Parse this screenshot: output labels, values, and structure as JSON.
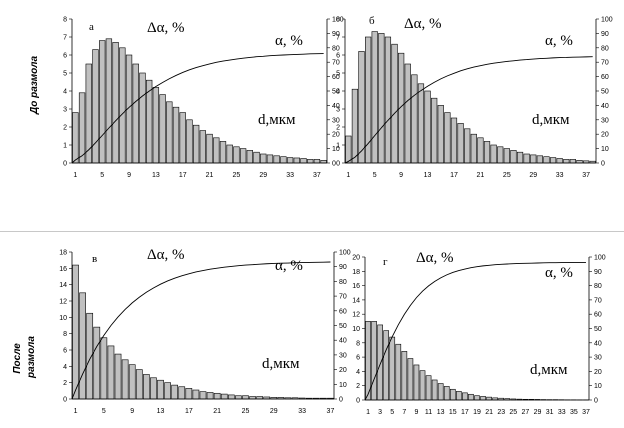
{
  "figure": {
    "row_labels": [
      "До размола",
      "После размола"
    ],
    "row_label_lines": [
      [
        "До размола"
      ],
      [
        "После",
        "размола"
      ]
    ]
  },
  "chart_data": [
    {
      "type": "bar",
      "panel_label": "а",
      "row": "До размола",
      "left_axis_label": "Δα, %",
      "right_axis_label": "α, %",
      "x_axis_label": "d,мкм",
      "categories": [
        1,
        2,
        3,
        4,
        5,
        6,
        7,
        8,
        9,
        10,
        11,
        12,
        13,
        14,
        15,
        16,
        17,
        18,
        19,
        20,
        21,
        22,
        23,
        24,
        25,
        26,
        27,
        28,
        29,
        30,
        31,
        32,
        33,
        34,
        35,
        36,
        37,
        38
      ],
      "x_ticks": [
        1,
        5,
        9,
        13,
        17,
        21,
        25,
        29,
        33,
        37
      ],
      "series": [
        {
          "axis": "left",
          "kind": "bars",
          "values": [
            2.8,
            3.9,
            5.5,
            6.3,
            6.8,
            6.9,
            6.7,
            6.4,
            6.0,
            5.5,
            5.0,
            4.6,
            4.2,
            3.8,
            3.4,
            3.1,
            2.8,
            2.4,
            2.1,
            1.8,
            1.6,
            1.4,
            1.2,
            1.0,
            0.9,
            0.8,
            0.7,
            0.6,
            0.5,
            0.45,
            0.4,
            0.35,
            0.3,
            0.28,
            0.25,
            0.2,
            0.2,
            0.15
          ]
        },
        {
          "axis": "right",
          "kind": "line",
          "values": [
            2.1,
            5.0,
            9.2,
            14.0,
            19.1,
            24.3,
            29.3,
            34.1,
            38.6,
            42.7,
            46.5,
            49.9,
            53.1,
            55.9,
            58.5,
            60.8,
            62.9,
            64.7,
            66.3,
            67.6,
            68.8,
            69.9,
            70.8,
            71.5,
            72.2,
            72.8,
            73.3,
            73.8,
            74.1,
            74.5,
            74.8,
            75.0,
            75.2,
            75.4,
            75.6,
            75.8,
            75.9,
            76.0
          ]
        }
      ],
      "ylim_left": [
        0,
        8
      ],
      "ylim_right": [
        0,
        100
      ],
      "yticks_left": [
        0,
        1,
        2,
        3,
        4,
        5,
        6,
        7,
        8
      ],
      "yticks_right": [
        0,
        10,
        20,
        30,
        40,
        50,
        60,
        70,
        80,
        90,
        100
      ]
    },
    {
      "type": "bar",
      "panel_label": "б",
      "row": "До размола",
      "left_axis_label": "Δα, %",
      "right_axis_label": "α, %",
      "x_axis_label": "d,мкм",
      "categories": [
        1,
        2,
        3,
        4,
        5,
        6,
        7,
        8,
        9,
        10,
        11,
        12,
        13,
        14,
        15,
        16,
        17,
        18,
        19,
        20,
        21,
        22,
        23,
        24,
        25,
        26,
        27,
        28,
        29,
        30,
        31,
        32,
        33,
        34,
        35,
        36,
        37,
        38
      ],
      "x_ticks": [
        1,
        5,
        9,
        13,
        17,
        21,
        25,
        29,
        33,
        37
      ],
      "series": [
        {
          "axis": "left",
          "kind": "bars",
          "values": [
            1.5,
            4.1,
            6.2,
            7.0,
            7.3,
            7.2,
            7.0,
            6.6,
            6.1,
            5.5,
            4.9,
            4.4,
            4.0,
            3.6,
            3.2,
            2.8,
            2.5,
            2.2,
            1.9,
            1.6,
            1.4,
            1.2,
            1.0,
            0.9,
            0.8,
            0.7,
            0.6,
            0.5,
            0.45,
            0.4,
            0.35,
            0.3,
            0.25,
            0.2,
            0.2,
            0.15,
            0.12,
            0.1
          ]
        },
        {
          "axis": "right",
          "kind": "line",
          "values": [
            1.1,
            4.0,
            8.4,
            13.5,
            19.0,
            24.4,
            29.6,
            34.5,
            39.1,
            43.3,
            47.0,
            50.3,
            53.3,
            56.0,
            58.4,
            60.5,
            62.3,
            64.0,
            65.4,
            66.6,
            67.6,
            68.5,
            69.3,
            69.9,
            70.5,
            71.0,
            71.5,
            71.8,
            72.2,
            72.5,
            72.7,
            73.0,
            73.2,
            73.3,
            73.5,
            73.6,
            73.7,
            73.8
          ]
        }
      ],
      "ylim_left": [
        0,
        8
      ],
      "ylim_right": [
        0,
        100
      ],
      "yticks_left": [
        0,
        1,
        2,
        3,
        4,
        5,
        6,
        7,
        8
      ],
      "yticks_right": [
        0,
        10,
        20,
        30,
        40,
        50,
        60,
        70,
        80,
        90,
        100
      ]
    },
    {
      "type": "bar",
      "panel_label": "в",
      "row": "После размола",
      "left_axis_label": "Δα, %",
      "right_axis_label": "α, %",
      "x_axis_label": "d,мкм",
      "categories": [
        1,
        2,
        3,
        4,
        5,
        6,
        7,
        8,
        9,
        10,
        11,
        12,
        13,
        14,
        15,
        16,
        17,
        18,
        19,
        20,
        21,
        22,
        23,
        24,
        25,
        26,
        27,
        28,
        29,
        30,
        31,
        32,
        33,
        34,
        35,
        36,
        37
      ],
      "x_ticks": [
        1,
        5,
        9,
        13,
        17,
        21,
        25,
        29,
        33,
        37
      ],
      "series": [
        {
          "axis": "left",
          "kind": "bars",
          "values": [
            16.4,
            13.0,
            10.5,
            8.8,
            7.5,
            6.5,
            5.5,
            4.8,
            4.2,
            3.6,
            3.0,
            2.6,
            2.3,
            2.0,
            1.7,
            1.5,
            1.3,
            1.1,
            0.9,
            0.8,
            0.7,
            0.6,
            0.5,
            0.4,
            0.4,
            0.3,
            0.3,
            0.25,
            0.2,
            0.2,
            0.15,
            0.15,
            0.12,
            0.1,
            0.1,
            0.1,
            0.1
          ]
        },
        {
          "axis": "right",
          "kind": "line",
          "values": [
            6.0,
            17.0,
            27.0,
            35.7,
            43.3,
            50.0,
            55.8,
            60.9,
            65.4,
            69.2,
            72.6,
            75.5,
            78.1,
            80.3,
            82.2,
            83.8,
            85.2,
            86.4,
            87.4,
            88.3,
            89.0,
            89.7,
            90.2,
            90.7,
            91.1,
            91.4,
            91.7,
            92.0,
            92.2,
            92.4,
            92.5,
            92.7,
            92.8,
            92.9,
            93.0,
            93.1,
            93.2
          ]
        }
      ],
      "ylim_left": [
        0,
        18
      ],
      "ylim_right": [
        0,
        100
      ],
      "yticks_left": [
        0,
        2,
        4,
        6,
        8,
        10,
        12,
        14,
        16,
        18
      ],
      "yticks_right": [
        0,
        10,
        20,
        30,
        40,
        50,
        60,
        70,
        80,
        90,
        100
      ]
    },
    {
      "type": "bar",
      "panel_label": "г",
      "row": "После размола",
      "left_axis_label": "Δα, %",
      "right_axis_label": "α, %",
      "x_axis_label": "d,мкм",
      "categories": [
        1,
        2,
        3,
        4,
        5,
        6,
        7,
        8,
        9,
        10,
        11,
        12,
        13,
        14,
        15,
        16,
        17,
        18,
        19,
        20,
        21,
        22,
        23,
        24,
        25,
        26,
        27,
        28,
        29,
        30,
        31,
        32,
        33,
        34,
        35,
        36,
        37
      ],
      "x_ticks": [
        1,
        3,
        5,
        7,
        9,
        11,
        13,
        15,
        17,
        19,
        21,
        23,
        25,
        27,
        29,
        31,
        33,
        35,
        37
      ],
      "series": [
        {
          "axis": "left",
          "kind": "bars",
          "values": [
            11.0,
            11.0,
            10.5,
            9.7,
            8.8,
            7.8,
            6.8,
            5.8,
            4.9,
            4.1,
            3.4,
            2.8,
            2.3,
            1.9,
            1.5,
            1.2,
            1.0,
            0.8,
            0.6,
            0.5,
            0.4,
            0.3,
            0.25,
            0.2,
            0.15,
            0.12,
            0.1,
            0.1,
            0.08,
            0.06,
            0.05,
            0.05,
            0.04,
            0.03,
            0.03,
            0.02,
            0.02
          ]
        },
        {
          "axis": "right",
          "kind": "line",
          "values": [
            4.0,
            14.5,
            25.0,
            35.1,
            44.3,
            52.6,
            59.9,
            66.2,
            71.6,
            76.1,
            79.8,
            82.9,
            85.4,
            87.5,
            89.2,
            90.5,
            91.6,
            92.5,
            93.2,
            93.8,
            94.2,
            94.6,
            94.9,
            95.1,
            95.3,
            95.5,
            95.6,
            95.7,
            95.8,
            95.9,
            96.0,
            96.0,
            96.1,
            96.1,
            96.2,
            96.2,
            96.2
          ]
        }
      ],
      "ylim_left": [
        0,
        20
      ],
      "ylim_right": [
        0,
        100
      ],
      "yticks_left": [
        0,
        2,
        4,
        6,
        8,
        10,
        12,
        14,
        16,
        18,
        20
      ],
      "yticks_right": [
        0,
        10,
        20,
        30,
        40,
        50,
        60,
        70,
        80,
        90,
        100
      ]
    }
  ]
}
